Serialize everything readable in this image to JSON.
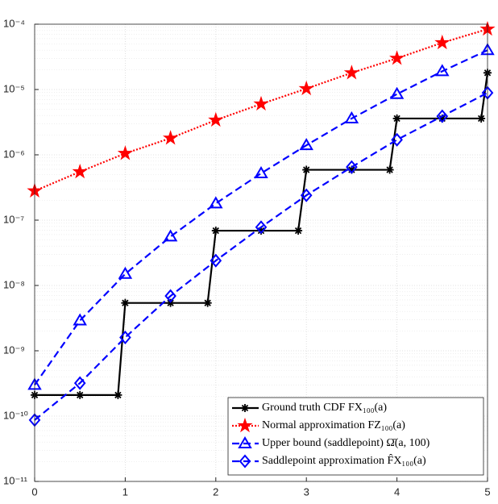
{
  "chart_data": {
    "type": "line",
    "xlim": [
      0,
      5
    ],
    "xticks": [
      0,
      1,
      2,
      3,
      4,
      5
    ],
    "ylim": [
      1e-11,
      0.0001
    ],
    "yticks": [
      {
        "value": 1e-11,
        "label": "10⁻¹¹"
      },
      {
        "value": 1e-10,
        "label": "10⁻¹⁰"
      },
      {
        "value": 1e-09,
        "label": "10⁻⁹"
      },
      {
        "value": 1e-08,
        "label": "10⁻⁸"
      },
      {
        "value": 1e-07,
        "label": "10⁻⁷"
      },
      {
        "value": 1e-06,
        "label": "10⁻⁶"
      },
      {
        "value": 1e-05,
        "label": "10⁻⁵"
      },
      {
        "value": 0.0001,
        "label": "10⁻⁴"
      }
    ],
    "log_y": true,
    "grid": true,
    "minor_grid": true,
    "legend": "lower right",
    "series": [
      {
        "name": "Ground truth CDF FX₁₀₀(a)",
        "color": "#000000",
        "marker": "asterisk",
        "linestyle": "solid",
        "x": [
          0,
          0.5,
          0.92,
          1,
          1.5,
          1.91,
          2,
          2.5,
          2.91,
          3,
          3.5,
          3.92,
          4,
          4.5,
          4.93,
          5
        ],
        "values": [
          2.1e-10,
          2.1e-10,
          2.1e-10,
          5.4e-09,
          5.4e-09,
          5.4e-09,
          6.9e-08,
          6.9e-08,
          6.9e-08,
          5.9e-07,
          5.9e-07,
          5.9e-07,
          3.6e-06,
          3.6e-06,
          3.6e-06,
          1.8e-05
        ]
      },
      {
        "name": "Normal approximation FZ₁₀₀(a)",
        "color": "#ff0000",
        "marker": "star",
        "linestyle": "dotted",
        "x": [
          0,
          0.5,
          1,
          1.5,
          2,
          2.5,
          3,
          3.5,
          4,
          4.5,
          5
        ],
        "values": [
          2.8e-07,
          5.5e-07,
          1.05e-06,
          1.8e-06,
          3.4e-06,
          6e-06,
          1.03e-05,
          1.8e-05,
          3e-05,
          5.2e-05,
          8.4e-05
        ]
      },
      {
        "name": "Upper bound (saddlepoint) Ω̄(a, 100)",
        "color": "#0000ff",
        "marker": "triangle",
        "linestyle": "dashed",
        "x": [
          0,
          0.5,
          1,
          1.5,
          2,
          2.5,
          3,
          3.5,
          4,
          4.5,
          5
        ],
        "values": [
          3e-10,
          2.9e-09,
          1.5e-08,
          5.6e-08,
          1.8e-07,
          5.2e-07,
          1.4e-06,
          3.6e-06,
          8.5e-06,
          1.9e-05,
          4e-05
        ]
      },
      {
        "name": "Saddlepoint approximation F̂X₁₀₀(a)",
        "color": "#0000ff",
        "marker": "diamond",
        "linestyle": "dashed",
        "x": [
          0,
          0.5,
          1,
          1.5,
          2,
          2.5,
          3,
          3.5,
          4,
          4.5,
          5
        ],
        "values": [
          8.7e-11,
          3.2e-10,
          1.6e-09,
          6.9e-09,
          2.4e-08,
          7.8e-08,
          2.4e-07,
          6.5e-07,
          1.7e-06,
          3.9e-06,
          8.9e-06
        ]
      }
    ]
  }
}
